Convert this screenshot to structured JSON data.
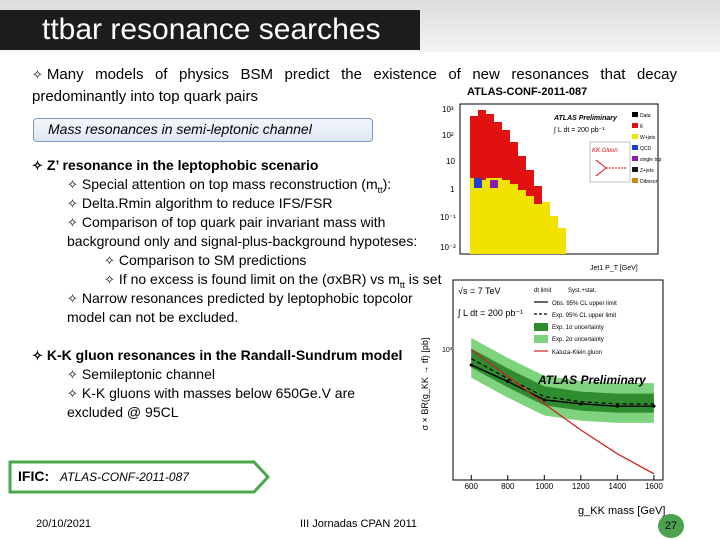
{
  "slide": {
    "title": "ttbar resonance searches",
    "intro": "Many models of physics BSM predict the existence of new resonances that decay predominantly into top quark pairs",
    "ref_top": "ATLAS-CONF-2011-087",
    "box_label": "Mass resonances in semi-leptonic channel",
    "zprime": {
      "heading": "Z’ resonance in the leptophobic scenario",
      "items": [
        "Special attention on top mass reconstruction (m",
        "Delta.Rmin algorithm to reduce IFS/FSR",
        "Comparison of top quark pair invariant mass with background only and signal-plus-background hypoteses:",
        "Comparison to SM predictions",
        "If no excess is found limit on the (σxBR) vs m",
        "Narrow resonances predicted by leptophobic topcolor model can not be excluded."
      ],
      "sub_tt": "tt",
      "item1_tail": "):",
      "item5_tail": " is set"
    },
    "kk": {
      "heading": "K-K gluon resonances in the Randall-Sundrum model",
      "items": [
        "Semileptonic channel",
        "K-K gluons with masses below 650Ge.V are excluded @ 95CL"
      ]
    },
    "ific": {
      "label": "IFIC:",
      "ref": "ATLAS-CONF-2011-087"
    },
    "footer": {
      "date": "20/10/2021",
      "event": "III Jornadas CPAN 2011",
      "page": "27"
    }
  },
  "upper_plot": {
    "legend_title": "ATLAS Preliminary",
    "lumi": "∫ L dt = 200 pb⁻¹",
    "legend": [
      "Data",
      "tt̄",
      "W+jets",
      "QCD",
      "single top",
      "Z+jets",
      "Diboson"
    ],
    "inset_label": "KK Gluon",
    "x_label": "Jet1 P_T [GeV]",
    "y_ticks": [
      "10³",
      "10²",
      "10",
      "1",
      "10⁻¹",
      "10⁻²"
    ],
    "colors": {
      "ttbar": "#e01010",
      "wjets": "#f2e200",
      "qcd": "#2040d0",
      "stop": "#8a1cb0",
      "zjets": "#1a1a1a",
      "diboson": "#cc8800"
    }
  },
  "limit_plot": {
    "energy": "√s = 7 TeV",
    "lumi": "∫ L dt = 200 pb⁻¹",
    "legend": [
      "Obs. 95% CL upper limit",
      "Exp. 95% CL upper limit",
      "Exp. 1σ uncertainty",
      "Exp. 2σ uncertainty",
      "Kaluza-Klein gluon"
    ],
    "syst_label": "Syst.+stat.",
    "dlimit_label": "dt limit",
    "brand": "ATLAS Preliminary",
    "y_label": "σ × BR(g_KK → tt̄) [pb]",
    "y_tick": "10³",
    "x_label": "g_KK mass [GeV]",
    "colors": {
      "band1": "#2f8c2f",
      "band2": "#7fd37f",
      "theory": "#cc2222"
    }
  },
  "chart_data": [
    {
      "type": "line",
      "title": "",
      "xlabel": "g_KK mass [GeV]",
      "ylabel": "σ × BR(g_KK → tt̄) [pb]",
      "x": [
        600,
        800,
        1000,
        1200,
        1400,
        1600
      ],
      "x_tick_labels": [
        "600",
        "800",
        "1000",
        "1200",
        "1400",
        "1600"
      ],
      "xlim": [
        500,
        1650
      ],
      "log_y": true,
      "series": [
        {
          "name": "Obs. 95% CL upper limit",
          "values": [
            60,
            28,
            12,
            10,
            9,
            9
          ]
        },
        {
          "name": "Exp. 95% CL upper limit",
          "values": [
            80,
            32,
            14,
            11,
            10,
            10
          ]
        },
        {
          "name": "Kaluza-Klein gluon",
          "values": [
            120,
            35,
            10,
            3,
            1,
            0.4
          ]
        }
      ]
    }
  ]
}
